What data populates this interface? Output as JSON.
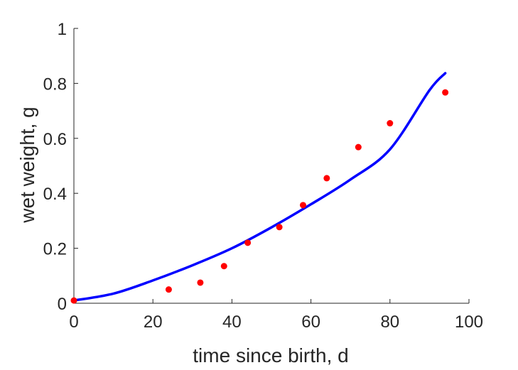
{
  "chart_data": {
    "type": "scatter",
    "xlabel": "time since birth, d",
    "ylabel": "wet weight, g",
    "xlim": [
      0,
      100
    ],
    "ylim": [
      0,
      1
    ],
    "xticks": [
      "0",
      "20",
      "40",
      "60",
      "80",
      "100"
    ],
    "yticks": [
      "0",
      "0.2",
      "0.4",
      "0.6",
      "0.8",
      "1"
    ],
    "grid": false,
    "series": [
      {
        "kind": "scatter",
        "color": "#ff0000",
        "x": [
          0,
          24,
          32,
          38,
          44,
          52,
          58,
          64,
          72,
          80,
          94
        ],
        "y": [
          0.01,
          0.05,
          0.075,
          0.135,
          0.22,
          0.277,
          0.357,
          0.455,
          0.568,
          0.655,
          0.767
        ]
      },
      {
        "kind": "line",
        "color": "#0000ff",
        "x": [
          0,
          10,
          20,
          30,
          40,
          50,
          60,
          70,
          80,
          90,
          94
        ],
        "y": [
          0.01,
          0.035,
          0.083,
          0.138,
          0.2,
          0.276,
          0.36,
          0.45,
          0.56,
          0.775,
          0.837
        ]
      }
    ]
  }
}
